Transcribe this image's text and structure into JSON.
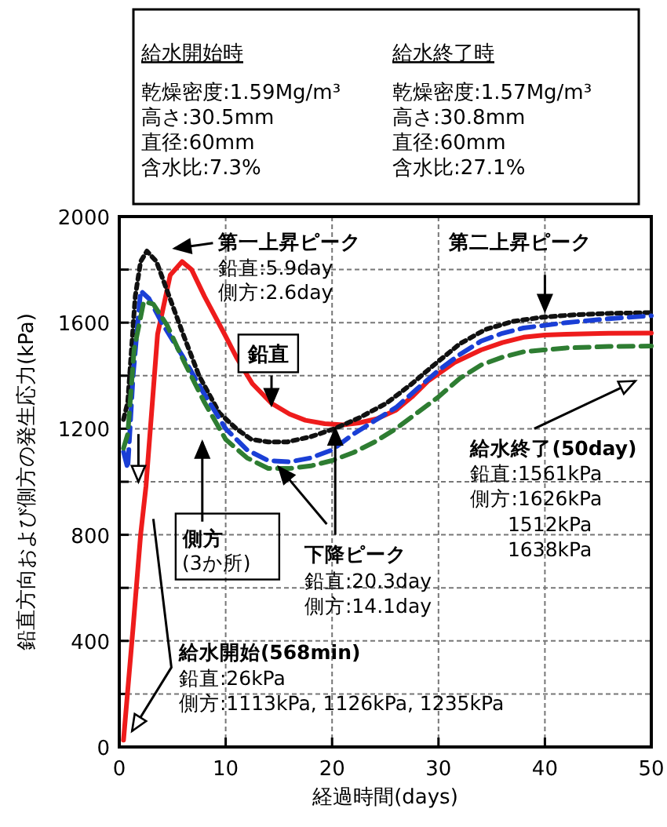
{
  "chart_data": {
    "type": "line",
    "xlabel": "経過時間(days)",
    "ylabel": "鉛直方向および側方の発生応力(kPa)",
    "xlim": [
      0,
      50
    ],
    "ylim": [
      0,
      2000
    ],
    "xticks": [
      0,
      10,
      20,
      30,
      40,
      50
    ],
    "yticks": [
      0,
      {
        "value": 200,
        "label": null
      },
      400,
      {
        "value": 600,
        "label": null
      },
      800,
      {
        "value": 1000,
        "label": null
      },
      1200,
      {
        "value": 1400,
        "label": null
      },
      1600,
      {
        "value": 1800,
        "label": null
      },
      2000
    ],
    "grid": true,
    "series": [
      {
        "color": "#ee1c1c",
        "line_style": "solid",
        "x": [
          0.4,
          1.3,
          2.0,
          2.5,
          3.6,
          4.8,
          5.9,
          6.8,
          8,
          9.9,
          11,
          12.5,
          14.3,
          16,
          17.5,
          19.3,
          21,
          22.5,
          24.2,
          26,
          27.5,
          29,
          31.5,
          34,
          36,
          38,
          40,
          42,
          46,
          50
        ],
        "values": [
          26,
          450,
          800,
          982,
          1556,
          1780,
          1830,
          1800,
          1700,
          1556,
          1470,
          1370,
          1296,
          1255,
          1232,
          1219,
          1215,
          1222,
          1237,
          1270,
          1320,
          1379,
          1450,
          1497,
          1525,
          1545,
          1553,
          1556,
          1560,
          1561
        ]
      },
      {
        "color": "#111111",
        "line_style": "dotted",
        "x": [
          0.4,
          0.8,
          1.5,
          2.0,
          2.6,
          3.5,
          4.5,
          6.0,
          7.5,
          9.4,
          11,
          12.4,
          14,
          15.8,
          18,
          20.2,
          22.5,
          25.1,
          27.5,
          29.5,
          32,
          34.4,
          37,
          39.8,
          43,
          46,
          50
        ],
        "values": [
          1235,
          1300,
          1700,
          1830,
          1870,
          1830,
          1720,
          1556,
          1400,
          1260,
          1200,
          1160,
          1150,
          1150,
          1170,
          1200,
          1240,
          1296,
          1370,
          1438,
          1520,
          1574,
          1605,
          1621,
          1630,
          1635,
          1638
        ]
      },
      {
        "color": "#1a3fd6",
        "line_style": "dashed",
        "x": [
          0.4,
          0.8,
          1.3,
          2.0,
          2.8,
          4.0,
          6,
          8,
          10,
          12,
          14,
          16,
          18,
          20,
          22,
          24,
          26,
          28,
          30,
          32,
          34,
          36,
          38,
          42,
          46,
          50
        ],
        "values": [
          1113,
          1050,
          1400,
          1720,
          1690,
          1600,
          1470,
          1330,
          1200,
          1120,
          1080,
          1075,
          1090,
          1120,
          1180,
          1230,
          1280,
          1350,
          1420,
          1480,
          1530,
          1560,
          1580,
          1600,
          1615,
          1626
        ]
      },
      {
        "color": "#2e7d32",
        "line_style": "dashed",
        "x": [
          0.4,
          0.8,
          1.4,
          2.3,
          3.2,
          4.5,
          6,
          8,
          10,
          12,
          14,
          16,
          18,
          20,
          22,
          24,
          26,
          28,
          30,
          32,
          34,
          36,
          38,
          42,
          46,
          50
        ],
        "values": [
          1126,
          1180,
          1500,
          1680,
          1670,
          1590,
          1460,
          1300,
          1160,
          1090,
          1050,
          1050,
          1060,
          1080,
          1110,
          1150,
          1200,
          1260,
          1320,
          1390,
          1440,
          1470,
          1490,
          1505,
          1510,
          1512
        ]
      }
    ],
    "annotations": [
      "給水開始時",
      "乾燥密度:1.59Mg/m³",
      "高さ:30.5mm",
      "直径:60mm",
      "含水比:7.3%",
      "給水終了時",
      "乾燥密度:1.57Mg/m³",
      "高さ:30.8mm",
      "直径:60mm",
      "含水比:27.1%",
      "第一上昇ピーク",
      "鉛直:5.9day",
      "側方:2.6day",
      "第二上昇ピーク",
      "鉛直",
      "側方",
      "(3か所)",
      {
        "text": "下降ピーク",
        "x": 20.3,
        "y": 1200
      },
      "鉛直:20.3day",
      "側方:14.1day",
      "給水終了(50day)",
      "鉛直:1561kPa",
      "側方:1626kPa",
      "1512kPa",
      "1638kPa",
      "給水開始(568min)",
      "鉛直:26kPa",
      "側方:1113kPa, 1126kPa, 1235kPa"
    ]
  }
}
